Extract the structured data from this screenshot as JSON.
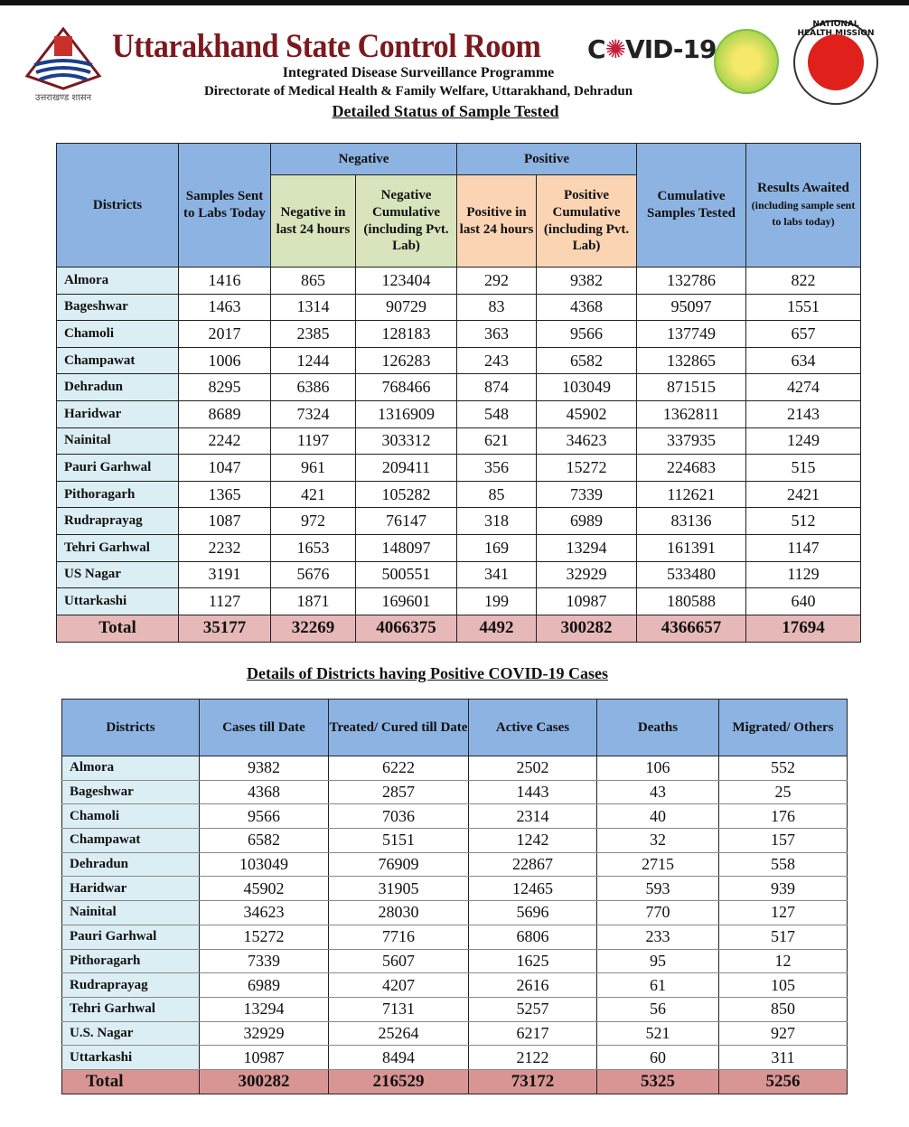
{
  "header": {
    "title": "Uttarakhand State Control Room",
    "covid_label_a": "C",
    "covid_label_b": "✺",
    "covid_label_c": "VID-19",
    "programme": "Integrated Disease Surveillance Programme",
    "directorate": "Directorate of Medical Health & Family Welfare, Uttarakhand, Dehradun",
    "section_title": "Detailed Status of Sample Tested",
    "logo_caption": "उत्तराखण्ड शासन",
    "nhm_ring": "NATIONAL HEALTH MISSION"
  },
  "table1": {
    "headers": {
      "districts": "Districts",
      "samples": "Samples Sent to Labs Today",
      "negative_group": "Negative",
      "positive_group": "Positive",
      "neg24": "Negative in last 24 hours",
      "negcum": "Negative Cumulative (including Pvt. Lab)",
      "pos24": "Positive in last 24 hours",
      "poscum": "Positive Cumulative (including Pvt. Lab)",
      "cumulative": "Cumulative Samples Tested",
      "awaited": "Results Awaited",
      "awaited_note": "(including sample sent to labs today)"
    },
    "rows": [
      [
        "Almora",
        "1416",
        "865",
        "123404",
        "292",
        "9382",
        "132786",
        "822"
      ],
      [
        "Bageshwar",
        "1463",
        "1314",
        "90729",
        "83",
        "4368",
        "95097",
        "1551"
      ],
      [
        "Chamoli",
        "2017",
        "2385",
        "128183",
        "363",
        "9566",
        "137749",
        "657"
      ],
      [
        "Champawat",
        "1006",
        "1244",
        "126283",
        "243",
        "6582",
        "132865",
        "634"
      ],
      [
        "Dehradun",
        "8295",
        "6386",
        "768466",
        "874",
        "103049",
        "871515",
        "4274"
      ],
      [
        "Haridwar",
        "8689",
        "7324",
        "1316909",
        "548",
        "45902",
        "1362811",
        "2143"
      ],
      [
        "Nainital",
        "2242",
        "1197",
        "303312",
        "621",
        "34623",
        "337935",
        "1249"
      ],
      [
        "Pauri Garhwal",
        "1047",
        "961",
        "209411",
        "356",
        "15272",
        "224683",
        "515"
      ],
      [
        "Pithoragarh",
        "1365",
        "421",
        "105282",
        "85",
        "7339",
        "112621",
        "2421"
      ],
      [
        "Rudraprayag",
        "1087",
        "972",
        "76147",
        "318",
        "6989",
        "83136",
        "512"
      ],
      [
        "Tehri Garhwal",
        "2232",
        "1653",
        "148097",
        "169",
        "13294",
        "161391",
        "1147"
      ],
      [
        "US Nagar",
        "3191",
        "5676",
        "500551",
        "341",
        "32929",
        "533480",
        "1129"
      ],
      [
        "Uttarkashi",
        "1127",
        "1871",
        "169601",
        "199",
        "10987",
        "180588",
        "640"
      ]
    ],
    "total": [
      "Total",
      "35177",
      "32269",
      "4066375",
      "4492",
      "300282",
      "4366657",
      "17694"
    ]
  },
  "section2_title": "Details of Districts having Positive COVID-19 Cases",
  "table2": {
    "headers": [
      "Districts",
      "Cases till Date",
      "Treated/ Cured till Date",
      "Active Cases",
      "Deaths",
      "Migrated/ Others"
    ],
    "rows": [
      [
        "Almora",
        "9382",
        "6222",
        "2502",
        "106",
        "552"
      ],
      [
        "Bageshwar",
        "4368",
        "2857",
        "1443",
        "43",
        "25"
      ],
      [
        "Chamoli",
        "9566",
        "7036",
        "2314",
        "40",
        "176"
      ],
      [
        "Champawat",
        "6582",
        "5151",
        "1242",
        "32",
        "157"
      ],
      [
        "Dehradun",
        "103049",
        "76909",
        "22867",
        "2715",
        "558"
      ],
      [
        "Haridwar",
        "45902",
        "31905",
        "12465",
        "593",
        "939"
      ],
      [
        "Nainital",
        "34623",
        "28030",
        "5696",
        "770",
        "127"
      ],
      [
        "Pauri Garhwal",
        "15272",
        "7716",
        "6806",
        "233",
        "517"
      ],
      [
        "Pithoragarh",
        "7339",
        "5607",
        "1625",
        "95",
        "12"
      ],
      [
        "Rudraprayag",
        "6989",
        "4207",
        "2616",
        "61",
        "105"
      ],
      [
        "Tehri Garhwal",
        "13294",
        "7131",
        "5257",
        "56",
        "850"
      ],
      [
        "U.S. Nagar",
        "32929",
        "25264",
        "6217",
        "521",
        "927"
      ],
      [
        "Uttarkashi",
        "10987",
        "8494",
        "2122",
        "60",
        "311"
      ]
    ],
    "total": [
      "Total",
      "300282",
      "216529",
      "73172",
      "5325",
      "5256"
    ]
  }
}
